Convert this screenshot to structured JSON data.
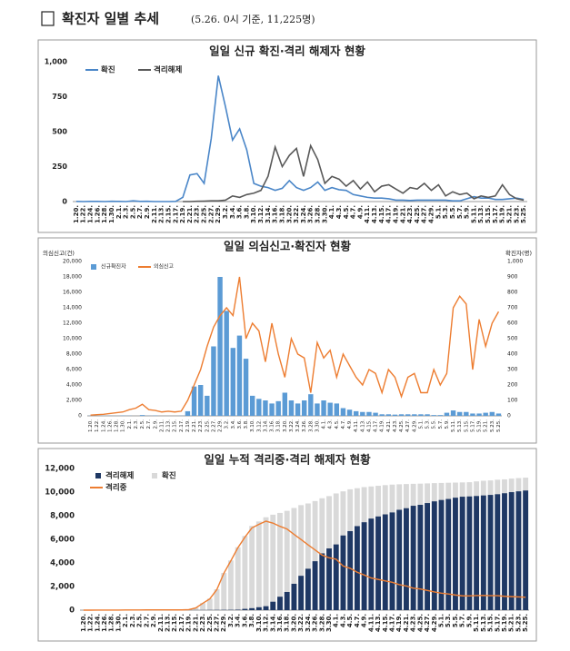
{
  "header": {
    "title": "확진자 일별 추세",
    "note": "(5.26. 0시 기준, 11,225명)"
  },
  "chart_data": [
    {
      "type": "line",
      "title": "일일 신규 확진·격리 해제자 현황",
      "legend": "top-left",
      "grid": false,
      "categories": [
        "1.20.",
        "1.22.",
        "1.24.",
        "1.26.",
        "1.28.",
        "1.30.",
        "2.1.",
        "2.3.",
        "2.5.",
        "2.7.",
        "2.9.",
        "2.11.",
        "2.13.",
        "2.15.",
        "2.17.",
        "2.19.",
        "2.21.",
        "2.23.",
        "2.25.",
        "2.27.",
        "2.29.",
        "3.2.",
        "3.4.",
        "3.6.",
        "3.8.",
        "3.10.",
        "3.12.",
        "3.14.",
        "3.16.",
        "3.18.",
        "3.20.",
        "3.22.",
        "3.24.",
        "3.26.",
        "3.28.",
        "3.30.",
        "4.1.",
        "4.3.",
        "4.5.",
        "4.7.",
        "4.9.",
        "4.11.",
        "4.13.",
        "4.15.",
        "4.17.",
        "4.19.",
        "4.21.",
        "4.23.",
        "4.25.",
        "4.27.",
        "4.29.",
        "5.1.",
        "5.3.",
        "5.5.",
        "5.7.",
        "5.9.",
        "5.11.",
        "5.13.",
        "5.15.",
        "5.17.",
        "5.19.",
        "5.21.",
        "5.23.",
        "5.25."
      ],
      "ylim": [
        0,
        1000
      ],
      "yticks": [
        0,
        250,
        500,
        750,
        {
          "value": 1000,
          "label": "1,000"
        }
      ],
      "series": [
        {
          "name": "확진",
          "color": "#4a86c8",
          "values": [
            1,
            0,
            1,
            1,
            0,
            2,
            1,
            0,
            5,
            1,
            2,
            0,
            0,
            0,
            1,
            30,
            190,
            200,
            130,
            450,
            900,
            680,
            440,
            520,
            370,
            130,
            110,
            100,
            80,
            95,
            150,
            100,
            80,
            100,
            140,
            80,
            100,
            85,
            80,
            50,
            40,
            30,
            25,
            25,
            20,
            10,
            10,
            8,
            10,
            10,
            10,
            10,
            10,
            5,
            5,
            20,
            35,
            25,
            25,
            15,
            15,
            20,
            25,
            15
          ]
        },
        {
          "name": "격리해제",
          "color": "#595959",
          "values": [
            null,
            null,
            null,
            null,
            null,
            null,
            null,
            null,
            null,
            null,
            null,
            null,
            null,
            null,
            null,
            0,
            0,
            2,
            3,
            5,
            5,
            10,
            40,
            30,
            50,
            60,
            80,
            180,
            390,
            250,
            330,
            380,
            180,
            400,
            300,
            130,
            180,
            160,
            110,
            150,
            90,
            140,
            70,
            110,
            120,
            90,
            60,
            100,
            90,
            130,
            80,
            120,
            40,
            70,
            50,
            60,
            20,
            40,
            30,
            40,
            120,
            50,
            20,
            10
          ]
        }
      ]
    },
    {
      "type": "bar-line",
      "title": "일일 의심신고·확진자 현황",
      "legend": "top-left",
      "grid": false,
      "y_label": "의심신고(건)",
      "y2_label": "확진자(명)",
      "categories": [
        "1.20.",
        "1.22.",
        "1.24.",
        "1.26.",
        "1.28.",
        "1.30.",
        "2.1.",
        "2.3.",
        "2.5.",
        "2.7.",
        "2.9.",
        "2.11.",
        "2.13.",
        "2.15.",
        "2.17.",
        "2.19.",
        "2.21.",
        "2.23.",
        "2.25.",
        "2.27.",
        "2.29.",
        "3.2.",
        "3.4.",
        "3.6.",
        "3.8.",
        "3.10.",
        "3.12.",
        "3.14.",
        "3.16.",
        "3.18.",
        "3.20.",
        "3.22.",
        "3.24.",
        "3.26.",
        "3.28.",
        "3.30.",
        "4.1.",
        "4.3.",
        "4.5.",
        "4.7.",
        "4.9.",
        "4.11.",
        "4.13.",
        "4.15.",
        "4.17.",
        "4.19.",
        "4.21.",
        "4.23.",
        "4.25.",
        "4.27.",
        "4.29.",
        "5.1.",
        "5.3.",
        "5.5.",
        "5.7.",
        "5.9.",
        "5.11.",
        "5.13.",
        "5.15.",
        "5.17.",
        "5.19.",
        "5.21.",
        "5.23.",
        "5.25."
      ],
      "ylim": [
        0,
        20000
      ],
      "yticks": [
        0,
        {
          "value": 2000,
          "label": "2,000"
        },
        {
          "value": 4000,
          "label": "4,000"
        },
        {
          "value": 6000,
          "label": "6,000"
        },
        {
          "value": 8000,
          "label": "8,000"
        },
        {
          "value": 10000,
          "label": "10,000"
        },
        {
          "value": 12000,
          "label": "12,000"
        },
        {
          "value": 14000,
          "label": "14,000"
        },
        {
          "value": 16000,
          "label": "16,000"
        },
        {
          "value": 18000,
          "label": "18,000"
        },
        {
          "value": 20000,
          "label": "20,000"
        }
      ],
      "y2lim": [
        0,
        1000
      ],
      "y2ticks": [
        0,
        100,
        200,
        300,
        400,
        500,
        600,
        700,
        800,
        900,
        {
          "value": 1000,
          "label": "1,000"
        }
      ],
      "series": [
        {
          "name": "신규확진자",
          "type": "bar",
          "axis": "y2",
          "color": "#5b9bd5",
          "values": [
            1,
            0,
            1,
            1,
            0,
            2,
            1,
            0,
            5,
            1,
            2,
            0,
            0,
            0,
            1,
            30,
            190,
            200,
            130,
            450,
            900,
            680,
            440,
            520,
            370,
            130,
            110,
            100,
            80,
            95,
            150,
            100,
            80,
            100,
            140,
            80,
            100,
            85,
            80,
            50,
            40,
            30,
            25,
            25,
            20,
            10,
            10,
            8,
            10,
            10,
            10,
            10,
            10,
            5,
            5,
            20,
            35,
            25,
            25,
            15,
            15,
            20,
            25,
            15
          ]
        },
        {
          "name": "의심신고",
          "type": "line",
          "color": "#ed7d31",
          "values": [
            100,
            150,
            200,
            300,
            400,
            500,
            800,
            1000,
            1500,
            800,
            700,
            500,
            600,
            500,
            600,
            2000,
            4000,
            6000,
            9000,
            11500,
            13000,
            14000,
            13000,
            18000,
            10000,
            12000,
            11000,
            7000,
            12000,
            8000,
            5000,
            10000,
            8000,
            7500,
            3000,
            9500,
            7500,
            8500,
            5000,
            8000,
            6500,
            5000,
            4000,
            6000,
            5500,
            3000,
            6000,
            5000,
            2500,
            5000,
            5500,
            3000,
            3000,
            6000,
            4000,
            5500,
            14000,
            15500,
            14500,
            6000,
            12500,
            9000,
            12000,
            13500
          ]
        }
      ]
    },
    {
      "type": "bar-line",
      "title": "일일 누적 격리중·격리 해제자 현황",
      "legend": "top-left",
      "grid": false,
      "categories": [
        "1.20.",
        "1.22.",
        "1.24.",
        "1.26.",
        "1.28.",
        "1.30.",
        "2.1.",
        "2.3.",
        "2.5.",
        "2.7.",
        "2.9.",
        "2.11.",
        "2.13.",
        "2.15.",
        "2.17.",
        "2.19.",
        "2.21.",
        "2.23.",
        "2.25.",
        "2.27.",
        "2.29.",
        "3.2.",
        "3.4.",
        "3.6.",
        "3.8.",
        "3.10.",
        "3.12.",
        "3.14.",
        "3.16.",
        "3.18.",
        "3.20.",
        "3.22.",
        "3.24.",
        "3.26.",
        "3.28.",
        "3.30.",
        "4.1.",
        "4.3.",
        "4.5.",
        "4.7.",
        "4.9.",
        "4.11.",
        "4.13.",
        "4.15.",
        "4.17.",
        "4.19.",
        "4.21.",
        "4.23.",
        "4.25.",
        "4.27.",
        "4.29.",
        "5.1.",
        "5.3.",
        "5.5.",
        "5.7.",
        "5.9.",
        "5.11.",
        "5.13.",
        "5.15.",
        "5.17.",
        "5.19.",
        "5.21.",
        "5.23.",
        "5.25."
      ],
      "ylim": [
        0,
        12000
      ],
      "yticks": [
        0,
        {
          "value": 2000,
          "label": "2,000"
        },
        {
          "value": 4000,
          "label": "4,000"
        },
        {
          "value": 6000,
          "label": "6,000"
        },
        {
          "value": 8000,
          "label": "8,000"
        },
        {
          "value": 10000,
          "label": "10,000"
        },
        {
          "value": 12000,
          "label": "12,000"
        }
      ],
      "series": [
        {
          "name": "격리해제",
          "type": "bar",
          "color": "#1f3864",
          "values": [
            0,
            0,
            0,
            0,
            0,
            0,
            0,
            0,
            1,
            2,
            3,
            4,
            7,
            9,
            10,
            12,
            16,
            18,
            22,
            24,
            27,
            30,
            41,
            108,
            166,
            247,
            333,
            714,
            1137,
            1540,
            2233,
            2909,
            3507,
            4144,
            4811,
            5228,
            5567,
            6325,
            6694,
            7117,
            7447,
            7757,
            7937,
            8114,
            8277,
            8501,
            8635,
            8842,
            8922,
            9072,
            9217,
            9333,
            9419,
            9527,
            9610,
            9632,
            9670,
            9717,
            9762,
            9821,
            9904,
            9997,
            10066,
            10135
          ]
        },
        {
          "name": "확진",
          "type": "bar",
          "color": "#d9d9d9",
          "values": [
            1,
            1,
            2,
            3,
            4,
            6,
            12,
            15,
            19,
            24,
            27,
            28,
            28,
            28,
            30,
            51,
            204,
            602,
            977,
            1766,
            3150,
            4212,
            5328,
            6284,
            7134,
            7513,
            7869,
            8086,
            8236,
            8413,
            8652,
            8897,
            9037,
            9241,
            9478,
            9661,
            9887,
            10062,
            10237,
            10331,
            10423,
            10480,
            10537,
            10591,
            10635,
            10661,
            10683,
            10702,
            10718,
            10738,
            10761,
            10774,
            10793,
            10806,
            10822,
            10840,
            10909,
            10962,
            10991,
            11050,
            11078,
            11142,
            11190,
            11225
          ]
        },
        {
          "name": "격리중",
          "type": "line",
          "color": "#ed7d31",
          "values": [
            1,
            1,
            2,
            3,
            4,
            6,
            12,
            15,
            18,
            22,
            24,
            24,
            21,
            19,
            20,
            39,
            188,
            584,
            955,
            1742,
            3123,
            4182,
            5287,
            6176,
            6968,
            7266,
            7536,
            7372,
            7099,
            6873,
            6419,
            5988,
            5530,
            5097,
            4667,
            4433,
            4320,
            3735,
            3543,
            3214,
            2976,
            2723,
            2600,
            2477,
            2358,
            2160,
            2048,
            1860,
            1796,
            1666,
            1544,
            1441,
            1374,
            1279,
            1212,
            1208,
            1239,
            1245,
            1229,
            1229,
            1174,
            1145,
            1124,
            1090
          ]
        }
      ]
    }
  ]
}
